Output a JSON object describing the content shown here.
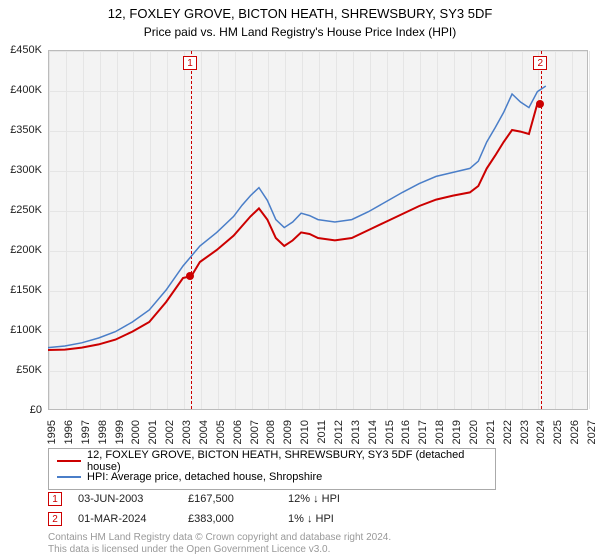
{
  "header": {
    "title": "12, FOXLEY GROVE, BICTON HEATH, SHREWSBURY, SY3 5DF",
    "subtitle": "Price paid vs. HM Land Registry's House Price Index (HPI)"
  },
  "chart": {
    "type": "line",
    "background_color": "#f3f3f3",
    "grid_color": "#e5e5e5",
    "border_color": "#bbbbbb",
    "font_color": "#222222",
    "label_fontsize": 11,
    "x": {
      "min": 1995,
      "max": 2027,
      "ticks": [
        1995,
        1996,
        1997,
        1998,
        1999,
        2000,
        2001,
        2002,
        2003,
        2004,
        2005,
        2006,
        2007,
        2008,
        2009,
        2010,
        2011,
        2012,
        2013,
        2014,
        2015,
        2016,
        2017,
        2018,
        2019,
        2020,
        2021,
        2022,
        2023,
        2024,
        2025,
        2026,
        2027
      ]
    },
    "y": {
      "min": 0,
      "max": 450000,
      "step": 50000,
      "ticks": [
        "£0",
        "£50K",
        "£100K",
        "£150K",
        "£200K",
        "£250K",
        "£300K",
        "£350K",
        "£400K",
        "£450K"
      ]
    },
    "series": [
      {
        "name": "12, FOXLEY GROVE, BICTON HEATH, SHREWSBURY, SY3 5DF (detached house)",
        "color": "#cc0000",
        "width": 2,
        "points": [
          [
            1995,
            75000
          ],
          [
            1996,
            75500
          ],
          [
            1997,
            78000
          ],
          [
            1998,
            82000
          ],
          [
            1999,
            88000
          ],
          [
            2000,
            98000
          ],
          [
            2001,
            110000
          ],
          [
            2002,
            135000
          ],
          [
            2003,
            165000
          ],
          [
            2003.5,
            167500
          ],
          [
            2004,
            185000
          ],
          [
            2005,
            200000
          ],
          [
            2006,
            218000
          ],
          [
            2006.5,
            230000
          ],
          [
            2007,
            242000
          ],
          [
            2007.5,
            252000
          ],
          [
            2008,
            238000
          ],
          [
            2008.5,
            215000
          ],
          [
            2009,
            205000
          ],
          [
            2009.5,
            212000
          ],
          [
            2010,
            222000
          ],
          [
            2010.5,
            220000
          ],
          [
            2011,
            215000
          ],
          [
            2012,
            212000
          ],
          [
            2013,
            215000
          ],
          [
            2014,
            225000
          ],
          [
            2015,
            235000
          ],
          [
            2016,
            245000
          ],
          [
            2017,
            255000
          ],
          [
            2018,
            263000
          ],
          [
            2019,
            268000
          ],
          [
            2020,
            272000
          ],
          [
            2020.5,
            280000
          ],
          [
            2021,
            302000
          ],
          [
            2021.5,
            318000
          ],
          [
            2022,
            335000
          ],
          [
            2022.5,
            350000
          ],
          [
            2023,
            348000
          ],
          [
            2023.5,
            345000
          ],
          [
            2024,
            383000
          ],
          [
            2024.2,
            383000
          ]
        ]
      },
      {
        "name": "HPI: Average price, detached house, Shropshire",
        "color": "#4a7ec8",
        "width": 1.5,
        "points": [
          [
            1995,
            78000
          ],
          [
            1996,
            80000
          ],
          [
            1997,
            84000
          ],
          [
            1998,
            90000
          ],
          [
            1999,
            98000
          ],
          [
            2000,
            110000
          ],
          [
            2001,
            125000
          ],
          [
            2002,
            150000
          ],
          [
            2003,
            180000
          ],
          [
            2004,
            205000
          ],
          [
            2005,
            222000
          ],
          [
            2006,
            242000
          ],
          [
            2006.5,
            256000
          ],
          [
            2007,
            268000
          ],
          [
            2007.5,
            278000
          ],
          [
            2008,
            262000
          ],
          [
            2008.5,
            238000
          ],
          [
            2009,
            228000
          ],
          [
            2009.5,
            235000
          ],
          [
            2010,
            246000
          ],
          [
            2010.5,
            243000
          ],
          [
            2011,
            238000
          ],
          [
            2012,
            235000
          ],
          [
            2013,
            238000
          ],
          [
            2014,
            248000
          ],
          [
            2015,
            260000
          ],
          [
            2016,
            272000
          ],
          [
            2017,
            283000
          ],
          [
            2018,
            292000
          ],
          [
            2019,
            297000
          ],
          [
            2020,
            302000
          ],
          [
            2020.5,
            311000
          ],
          [
            2021,
            335000
          ],
          [
            2021.5,
            353000
          ],
          [
            2022,
            372000
          ],
          [
            2022.5,
            395000
          ],
          [
            2023,
            385000
          ],
          [
            2023.5,
            378000
          ],
          [
            2024,
            398000
          ],
          [
            2024.5,
            405000
          ]
        ]
      }
    ]
  },
  "markers": [
    {
      "id": "1",
      "year": 2003.42,
      "price": 167500,
      "color": "#cc0000"
    },
    {
      "id": "2",
      "year": 2024.17,
      "price": 383000,
      "color": "#cc0000"
    }
  ],
  "legend": {
    "rows": [
      {
        "color": "#cc0000",
        "label": "12, FOXLEY GROVE, BICTON HEATH, SHREWSBURY, SY3 5DF (detached house)"
      },
      {
        "color": "#4a7ec8",
        "label": "HPI: Average price, detached house, Shropshire"
      }
    ]
  },
  "transactions": [
    {
      "id": "1",
      "color": "#cc0000",
      "date": "03-JUN-2003",
      "price": "£167,500",
      "delta": "12% ↓ HPI"
    },
    {
      "id": "2",
      "color": "#cc0000",
      "date": "01-MAR-2024",
      "price": "£383,000",
      "delta": "1% ↓ HPI"
    }
  ],
  "attribution": {
    "line1": "Contains HM Land Registry data © Crown copyright and database right 2024.",
    "line2": "This data is licensed under the Open Government Licence v3.0."
  }
}
